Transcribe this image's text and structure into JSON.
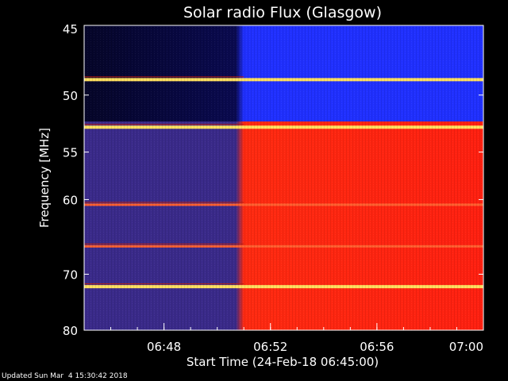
{
  "chart_data": {
    "type": "heatmap",
    "title": "Solar radio Flux (Glasgow)",
    "xlabel": "Start Time (24-Feb-18 06:45:00)",
    "ylabel": "Frequency [MHz]",
    "x_range_minutes": [
      0,
      15
    ],
    "xticks": [
      {
        "label": "06:48",
        "minute": 3
      },
      {
        "label": "06:52",
        "minute": 7
      },
      {
        "label": "06:56",
        "minute": 11
      },
      {
        "label": "07:00",
        "minute": 15
      }
    ],
    "ylim": [
      45,
      80
    ],
    "yticks": [
      45,
      50,
      55,
      60,
      70,
      80
    ],
    "y_scale": "reciprocal",
    "event_start_minute": 6.0,
    "colors": {
      "background_quiet": "#3a2a8a",
      "background_active": "#ff2a10",
      "band_bright": "#ffe060",
      "band_blue": "#2030ff",
      "dark": "#050528"
    },
    "horizontal_bands_mhz": [
      {
        "freq": 48.8,
        "intensity": "bright"
      },
      {
        "freq": 52.7,
        "intensity": "bright"
      },
      {
        "freq": 60.6,
        "intensity": "medium"
      },
      {
        "freq": 65.9,
        "intensity": "medium"
      },
      {
        "freq": 72.0,
        "intensity": "bright"
      }
    ]
  },
  "footer": {
    "updated": "Updated Sun Mar  4 15:30:42 2018"
  }
}
